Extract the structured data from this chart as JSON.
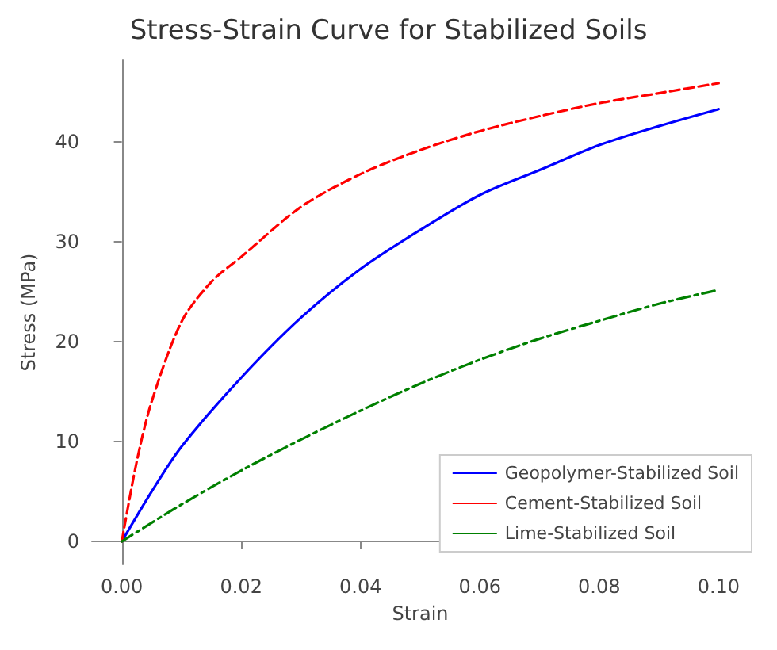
{
  "chart_data": {
    "type": "line",
    "title": "Stress-Strain Curve for Stabilized Soils",
    "xlabel": "Strain",
    "ylabel": "Stress (MPa)",
    "xlim": [
      -0.005,
      0.105
    ],
    "xticks": [
      {
        "value": 0,
        "label": "0.00"
      },
      {
        "value": 0.02,
        "label": "0.02"
      },
      {
        "value": 0.04,
        "label": "0.04"
      },
      {
        "value": 0.06,
        "label": "0.06"
      },
      {
        "value": 0.08,
        "label": "0.08"
      },
      {
        "value": 0.1,
        "label": "0.10"
      }
    ],
    "ylim": [
      -2.3,
      48.2
    ],
    "yticks": [
      0,
      10,
      20,
      30,
      40
    ],
    "grid": false,
    "legend": "bottom right",
    "series": [
      {
        "name": "Geopolymer-Stabilized Soil",
        "color": "#0000ff",
        "line_style": "solid",
        "x": [
          0,
          0.005,
          0.01,
          0.02,
          0.03,
          0.04,
          0.05,
          0.06,
          0.07,
          0.08,
          0.09,
          0.1
        ],
        "values": [
          0,
          5,
          9.5,
          16.4,
          22.4,
          27.3,
          31.2,
          34.7,
          37.2,
          39.7,
          41.6,
          43.3
        ]
      },
      {
        "name": "Cement-Stabilized Soil",
        "color": "#ff0000",
        "line_style": "dashed",
        "x": [
          0,
          0.0025,
          0.005,
          0.01,
          0.015,
          0.02,
          0.03,
          0.04,
          0.05,
          0.06,
          0.07,
          0.08,
          0.09,
          0.1
        ],
        "values": [
          0,
          8,
          14,
          22,
          26,
          28.5,
          33.5,
          36.8,
          39.2,
          41.1,
          42.6,
          43.9,
          44.9,
          45.9
        ]
      },
      {
        "name": "Lime-Stabilized Soil",
        "color": "#008000",
        "line_style": "dashdot",
        "x": [
          0,
          0.01,
          0.02,
          0.03,
          0.04,
          0.05,
          0.06,
          0.07,
          0.08,
          0.09,
          0.1
        ],
        "values": [
          0,
          3.7,
          7.1,
          10.2,
          13.1,
          15.8,
          18.2,
          20.3,
          22.1,
          23.8,
          25.2
        ]
      }
    ]
  }
}
